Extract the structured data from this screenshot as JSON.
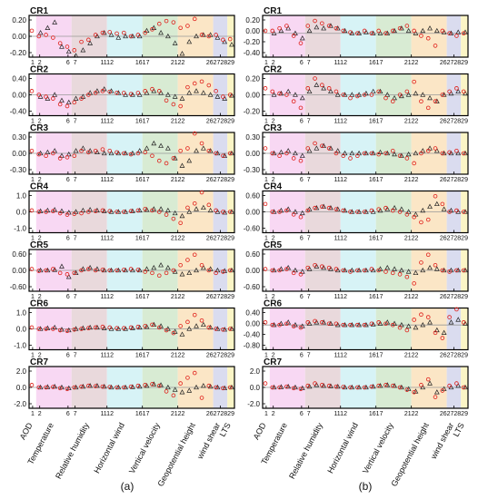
{
  "chart_data": {
    "type": "scatter",
    "x_tick_labels": [
      "1",
      "2",
      "6",
      "7",
      "1112",
      "1617",
      "2122",
      "26272829"
    ],
    "bands": [
      {
        "label": "AOD",
        "range": [
          1,
          1
        ],
        "color": "#ffffff"
      },
      {
        "label": "Temperature",
        "range": [
          2,
          6
        ],
        "color": "#f8d8f3"
      },
      {
        "label": "Relative humidity",
        "range": [
          7,
          11
        ],
        "color": "#e9d9dc"
      },
      {
        "label": "Horizontal wind",
        "range": [
          12,
          16
        ],
        "color": "#d7f3f6"
      },
      {
        "label": "Vertical velocity",
        "range": [
          17,
          21
        ],
        "color": "#d8ebd3"
      },
      {
        "label": "Geopotential height",
        "range": [
          22,
          26
        ],
        "color": "#fbe6c6"
      },
      {
        "label": "wind shear",
        "range": [
          27,
          28
        ],
        "color": "#dadcef"
      },
      {
        "label": "LTS",
        "range": [
          29,
          29
        ],
        "color": "#fbf5c6"
      }
    ],
    "markers": {
      "circle_color": "#e0201b",
      "triangle_color": "#222222"
    },
    "panels": [
      {
        "panel": "(a)",
        "regime": "CR1",
        "yticks": [
          "0.20",
          "0.00",
          "-0.20"
        ],
        "ylim": [
          -0.3,
          0.3
        ],
        "circle": [
          0.08,
          0.0,
          0.02,
          -0.02,
          -0.1,
          -0.15,
          -0.2,
          -0.08,
          -0.05,
          0.02,
          0.05,
          0.06,
          0.04,
          0.05,
          0.0,
          0.02,
          0.05,
          0.1,
          0.18,
          0.22,
          0.2,
          0.12,
          0.15,
          0.25,
          0.02,
          0.0,
          0.02,
          -0.05,
          -0.04
        ],
        "triangle": [
          null,
          0.05,
          0.12,
          0.2,
          -0.15,
          -0.22,
          -0.28,
          -0.2,
          -0.1,
          0.0,
          0.05,
          0.02,
          -0.02,
          0.0,
          0.0,
          0.0,
          0.08,
          0.12,
          0.05,
          0.0,
          -0.1,
          -0.25,
          -0.08,
          0.0,
          0.02,
          0.02,
          -0.02,
          -0.08,
          -0.12
        ]
      },
      {
        "panel": "(a)",
        "regime": "CR2",
        "yticks": [
          "0.40",
          "0.00",
          "-0.40"
        ],
        "ylim": [
          -0.55,
          0.55
        ],
        "circle": [
          0.1,
          0.0,
          -0.05,
          -0.1,
          -0.25,
          -0.3,
          -0.2,
          -0.1,
          0.0,
          0.05,
          0.1,
          0.08,
          0.05,
          0.05,
          0.02,
          0.05,
          0.1,
          0.15,
          0.1,
          -0.15,
          -0.25,
          -0.3,
          0.2,
          0.3,
          0.35,
          0.25,
          0.1,
          -0.05,
          0.0
        ],
        "triangle": [
          null,
          -0.05,
          -0.1,
          0.0,
          -0.15,
          -0.2,
          -0.1,
          -0.05,
          0.05,
          0.1,
          0.15,
          0.1,
          0.05,
          0.0,
          0.0,
          0.0,
          0.05,
          0.1,
          0.05,
          0.0,
          -0.05,
          -0.1,
          0.05,
          0.1,
          0.05,
          0.0,
          -0.05,
          -0.1,
          -0.02
        ]
      },
      {
        "panel": "(a)",
        "regime": "CR3",
        "yticks": [
          "0.30",
          "0.00",
          "-0.30"
        ],
        "ylim": [
          -0.42,
          0.42
        ],
        "circle": [
          0.05,
          -0.02,
          -0.05,
          0.0,
          -0.1,
          -0.08,
          -0.05,
          0.05,
          0.02,
          0.05,
          0.08,
          0.05,
          0.02,
          0.0,
          -0.02,
          0.0,
          0.02,
          -0.05,
          -0.15,
          -0.2,
          -0.1,
          0.05,
          0.1,
          0.4,
          0.2,
          0.05,
          0.0,
          -0.05,
          0.0
        ],
        "triangle": [
          null,
          0.0,
          0.02,
          0.05,
          -0.05,
          -0.02,
          0.05,
          0.1,
          0.05,
          0.02,
          0.0,
          0.0,
          0.0,
          0.0,
          0.0,
          0.05,
          0.1,
          0.2,
          0.15,
          0.1,
          -0.1,
          -0.25,
          -0.15,
          0.05,
          0.1,
          0.05,
          0.0,
          -0.05,
          0.0
        ]
      },
      {
        "panel": "(a)",
        "regime": "CR4",
        "yticks": [
          "1.0",
          "0.0",
          "-1.0"
        ],
        "ylim": [
          -1.5,
          1.5
        ],
        "circle": [
          0.1,
          0.0,
          0.0,
          0.05,
          -0.1,
          -0.2,
          -0.15,
          -0.1,
          0.0,
          0.05,
          0.1,
          0.05,
          0.0,
          0.0,
          0.05,
          0.1,
          0.2,
          0.1,
          0.0,
          -0.2,
          -0.5,
          -0.8,
          0.3,
          0.6,
          1.4,
          0.5,
          0.1,
          0.0,
          0.0
        ],
        "triangle": [
          null,
          0.05,
          0.1,
          0.15,
          0.05,
          -0.05,
          0.0,
          0.1,
          0.15,
          0.1,
          0.05,
          0.0,
          0.0,
          0.0,
          0.05,
          0.1,
          0.15,
          0.2,
          0.2,
          0.1,
          -0.1,
          -0.3,
          0.0,
          0.2,
          0.3,
          0.1,
          0.0,
          -0.05,
          0.0
        ]
      },
      {
        "panel": "(a)",
        "regime": "CR5",
        "yticks": [
          "0.60",
          "0.00",
          "-0.60"
        ],
        "ylim": [
          -0.8,
          0.8
        ],
        "circle": [
          0.05,
          -0.02,
          0.0,
          0.05,
          -0.1,
          -0.15,
          -0.1,
          0.0,
          0.05,
          0.0,
          0.02,
          0.0,
          0.0,
          0.02,
          0.05,
          0.02,
          -0.05,
          -0.1,
          -0.2,
          -0.1,
          0.0,
          0.2,
          0.4,
          0.6,
          0.2,
          0.0,
          -0.1,
          -0.05,
          0.0
        ],
        "triangle": [
          null,
          0.0,
          0.0,
          0.02,
          0.15,
          -0.25,
          -0.1,
          0.05,
          0.1,
          0.05,
          0.0,
          0.0,
          0.0,
          0.0,
          0.0,
          0.0,
          0.05,
          0.1,
          0.2,
          0.1,
          -0.05,
          -0.15,
          -0.1,
          0.0,
          0.1,
          0.05,
          0.0,
          -0.02,
          0.0
        ]
      },
      {
        "panel": "(a)",
        "regime": "CR6",
        "yticks": [
          "1.0",
          "0.0",
          "-1.0"
        ],
        "ylim": [
          -1.5,
          1.5
        ],
        "circle": [
          0.1,
          0.0,
          0.0,
          0.0,
          -0.1,
          -0.15,
          -0.05,
          0.0,
          0.05,
          0.1,
          0.15,
          0.1,
          0.05,
          0.05,
          0.1,
          0.15,
          0.2,
          0.3,
          0.1,
          -0.1,
          -0.3,
          0.2,
          0.5,
          1.0,
          0.6,
          0.1,
          0.0,
          -0.05,
          0.0
        ],
        "triangle": [
          null,
          0.0,
          0.05,
          0.1,
          -0.05,
          -0.1,
          0.0,
          0.05,
          0.1,
          0.1,
          0.05,
          0.0,
          0.0,
          0.0,
          0.05,
          0.1,
          0.15,
          0.3,
          0.2,
          0.0,
          -0.2,
          -0.4,
          0.0,
          0.2,
          0.3,
          0.1,
          0.0,
          -0.05,
          0.0
        ]
      },
      {
        "panel": "(a)",
        "regime": "CR7",
        "yticks": [
          "2.0",
          "0.0",
          "-2.0"
        ],
        "ylim": [
          -2.6,
          2.6
        ],
        "circle": [
          0.3,
          0.0,
          0.0,
          0.05,
          -0.1,
          -0.2,
          0.0,
          0.1,
          0.2,
          0.15,
          0.1,
          0.05,
          0.0,
          0.0,
          0.1,
          0.2,
          0.3,
          0.4,
          0.2,
          -0.5,
          -1.0,
          0.5,
          1.2,
          1.8,
          -1.3,
          0.2,
          0.0,
          -0.1,
          0.0
        ],
        "triangle": [
          null,
          0.0,
          0.05,
          0.1,
          0.0,
          -0.1,
          0.0,
          0.1,
          0.2,
          0.2,
          0.1,
          0.0,
          0.0,
          0.0,
          0.05,
          0.1,
          0.2,
          0.4,
          0.3,
          0.0,
          -0.3,
          -0.6,
          -0.4,
          0.0,
          0.2,
          0.1,
          0.0,
          -0.1,
          0.0
        ]
      },
      {
        "panel": "(b)",
        "regime": "CR1",
        "yticks": [
          "0.20",
          "0.00",
          "-0.20",
          "-0.40"
        ],
        "ylim": [
          -0.48,
          0.36
        ],
        "circle": [
          0.05,
          0.05,
          0.1,
          0.15,
          -0.05,
          -0.2,
          0.15,
          0.25,
          0.2,
          0.15,
          0.1,
          0.05,
          0.02,
          0.0,
          0.05,
          0.0,
          0.05,
          0.0,
          0.05,
          0.1,
          0.15,
          0.05,
          -0.05,
          -0.1,
          -0.25,
          0.05,
          0.0,
          -0.05,
          0.0
        ],
        "triangle": [
          null,
          0.0,
          0.05,
          0.1,
          0.0,
          -0.1,
          0.05,
          0.12,
          0.1,
          0.15,
          0.1,
          0.05,
          0.0,
          0.0,
          0.02,
          0.0,
          0.0,
          0.0,
          0.05,
          0.1,
          0.05,
          0.0,
          0.05,
          0.1,
          0.05,
          0.02,
          0.0,
          0.02,
          0.02
        ]
      },
      {
        "panel": "(b)",
        "regime": "CR2",
        "yticks": [
          "0.20",
          "0.00",
          "-0.20"
        ],
        "ylim": [
          -0.32,
          0.32
        ],
        "circle": [
          0.1,
          0.05,
          0.02,
          0.0,
          -0.1,
          -0.2,
          0.1,
          0.25,
          0.15,
          0.1,
          0.05,
          0.0,
          -0.05,
          -0.02,
          0.0,
          0.0,
          0.05,
          -0.05,
          -0.1,
          0.0,
          0.05,
          0.2,
          -0.1,
          -0.2,
          -0.1,
          0.0,
          0.05,
          0.1,
          0.05
        ],
        "triangle": [
          null,
          0.0,
          0.02,
          0.05,
          0.0,
          -0.05,
          0.05,
          0.15,
          0.1,
          0.05,
          0.0,
          0.0,
          0.0,
          0.0,
          0.02,
          0.05,
          0.05,
          0.0,
          -0.05,
          -0.02,
          0.0,
          0.02,
          0.0,
          -0.05,
          -0.1,
          0.0,
          0.02,
          0.05,
          0.02
        ]
      },
      {
        "panel": "(b)",
        "regime": "CR3",
        "yticks": [
          "0.30",
          "0.00",
          "-0.30"
        ],
        "ylim": [
          -0.42,
          0.42
        ],
        "circle": [
          0.1,
          0.0,
          -0.05,
          0.0,
          -0.1,
          -0.15,
          0.1,
          0.2,
          0.15,
          0.1,
          0.0,
          -0.05,
          -0.1,
          -0.05,
          0.0,
          0.0,
          -0.02,
          0.0,
          0.05,
          -0.05,
          -0.1,
          -0.2,
          0.0,
          0.05,
          0.1,
          0.0,
          0.02,
          0.05,
          0.0
        ],
        "triangle": [
          null,
          0.0,
          0.02,
          0.05,
          0.0,
          -0.05,
          0.05,
          0.1,
          0.15,
          0.1,
          0.05,
          0.0,
          0.0,
          0.0,
          0.0,
          0.0,
          0.02,
          0.0,
          -0.02,
          -0.05,
          -0.02,
          0.0,
          0.05,
          0.1,
          0.05,
          0.0,
          0.0,
          0.0,
          0.0
        ]
      },
      {
        "panel": "(b)",
        "regime": "CR4",
        "yticks": [
          "0.60",
          "0.00",
          "-0.60"
        ],
        "ylim": [
          -0.8,
          0.8
        ],
        "circle": [
          0.3,
          0.0,
          0.0,
          0.05,
          -0.1,
          -0.2,
          0.05,
          0.15,
          0.2,
          0.15,
          0.1,
          0.05,
          0.0,
          0.0,
          0.0,
          0.05,
          0.1,
          0.15,
          0.05,
          0.0,
          -0.1,
          -0.2,
          -0.4,
          -0.3,
          0.6,
          0.3,
          0.0,
          0.05,
          0.0
        ],
        "triangle": [
          null,
          0.0,
          0.05,
          0.1,
          0.0,
          -0.05,
          0.1,
          0.15,
          0.2,
          0.15,
          0.1,
          0.05,
          0.0,
          0.0,
          0.0,
          0.0,
          0.05,
          0.1,
          0.15,
          0.1,
          0.0,
          -0.1,
          0.05,
          0.2,
          0.3,
          0.1,
          0.05,
          0.0,
          0.0
        ]
      },
      {
        "panel": "(b)",
        "regime": "CR5",
        "yticks": [
          "0.60",
          "0.00",
          "-0.60"
        ],
        "ylim": [
          -0.8,
          0.8
        ],
        "circle": [
          0.05,
          0.0,
          0.0,
          0.05,
          -0.1,
          -0.15,
          0.1,
          0.2,
          0.15,
          0.1,
          0.05,
          0.0,
          -0.05,
          0.0,
          0.0,
          0.05,
          0.0,
          -0.05,
          -0.1,
          -0.15,
          -0.25,
          -0.5,
          0.3,
          0.6,
          0.2,
          0.0,
          -0.05,
          0.0,
          0.0
        ],
        "triangle": [
          null,
          0.0,
          0.05,
          0.1,
          0.0,
          -0.05,
          0.05,
          0.15,
          0.1,
          0.05,
          0.0,
          0.0,
          0.0,
          0.0,
          0.0,
          0.0,
          0.05,
          0.1,
          0.05,
          0.0,
          -0.05,
          -0.1,
          0.0,
          0.1,
          0.05,
          0.0,
          0.0,
          0.0,
          0.0
        ]
      },
      {
        "panel": "(b)",
        "regime": "CR6",
        "yticks": [
          "0.40",
          "0.00",
          "-0.40",
          "-0.80"
        ],
        "ylim": [
          -0.95,
          0.65
        ],
        "circle": [
          0.1,
          0.0,
          0.0,
          0.05,
          -0.05,
          -0.1,
          0.1,
          0.15,
          0.1,
          0.05,
          0.05,
          0.0,
          0.0,
          0.0,
          0.0,
          0.05,
          0.1,
          0.05,
          0.0,
          -0.1,
          -0.2,
          0.2,
          0.4,
          0.3,
          -0.3,
          -0.5,
          0.3,
          0.6,
          0.1
        ],
        "triangle": [
          null,
          0.0,
          0.05,
          0.1,
          0.0,
          -0.05,
          0.05,
          0.1,
          0.1,
          0.05,
          0.0,
          0.0,
          0.0,
          0.0,
          0.0,
          0.02,
          0.05,
          0.1,
          0.05,
          0.0,
          -0.05,
          -0.1,
          0.0,
          0.1,
          -0.2,
          -0.3,
          0.1,
          0.2,
          0.05
        ]
      },
      {
        "panel": "(b)",
        "regime": "CR7",
        "yticks": [
          "2.0",
          "0.0",
          "-2.0"
        ],
        "ylim": [
          -2.6,
          2.6
        ],
        "circle": [
          0.5,
          0.0,
          0.0,
          0.1,
          -0.1,
          -0.2,
          0.2,
          0.5,
          0.3,
          0.2,
          0.1,
          0.05,
          0.0,
          0.0,
          0.0,
          0.1,
          0.2,
          0.3,
          0.2,
          0.0,
          -0.3,
          -0.6,
          0.3,
          1.0,
          -1.2,
          -0.4,
          0.2,
          0.5,
          0.0
        ],
        "triangle": [
          null,
          0.0,
          0.05,
          0.1,
          0.0,
          -0.1,
          0.1,
          0.3,
          0.2,
          0.15,
          0.1,
          0.0,
          0.0,
          0.0,
          0.0,
          0.1,
          0.2,
          0.3,
          0.2,
          0.0,
          -0.2,
          -0.5,
          0.0,
          0.5,
          -0.6,
          -0.2,
          0.0,
          0.2,
          0.0
        ]
      }
    ]
  },
  "captions": {
    "left": "(a)",
    "right": "(b)"
  }
}
